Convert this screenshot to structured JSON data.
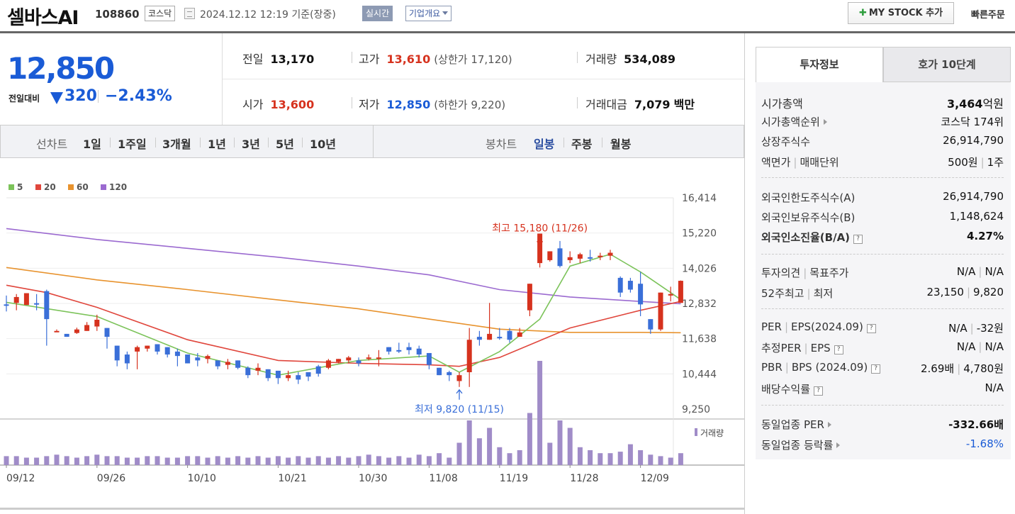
{
  "header": {
    "name": "셀바스AI",
    "code": "108860",
    "market": "코스닥",
    "timestamp": "2024.12.12 12:19 기준(장중)",
    "realtime": "실시간",
    "overview": "기업개요",
    "mystock": "MY STOCK 추가",
    "quick_order": "빠른주문"
  },
  "price": {
    "current": "12,850",
    "change_label": "전일대비",
    "change_abs": "320",
    "change_pct": "−2.43%",
    "direction": "down"
  },
  "quote": {
    "prev_close_label": "전일",
    "prev_close": "13,170",
    "high_label": "고가",
    "high": "13,610",
    "upper_limit": "(상한가 17,120)",
    "volume_label": "거래량",
    "volume": "534,089",
    "open_label": "시가",
    "open": "13,600",
    "low_label": "저가",
    "low": "12,850",
    "lower_limit": "(하한가 9,220)",
    "amount_label": "거래대금",
    "amount": "7,079",
    "amount_unit": "백만"
  },
  "periods": {
    "title": "선차트",
    "items": [
      "1일",
      "1주일",
      "3개월",
      "1년",
      "3년",
      "5년",
      "10년"
    ]
  },
  "candle_periods": {
    "title": "봉차트",
    "items": [
      "일봉",
      "주봉",
      "월봉"
    ],
    "active": "일봉"
  },
  "colors": {
    "up": "#d6321e",
    "down": "#3a6fd8",
    "ma5": "#7cc35a",
    "ma20": "#e0463c",
    "ma60": "#e8932e",
    "ma120": "#9b6ad0",
    "volume": "#a08cc8"
  },
  "side": {
    "tabs": [
      "투자정보",
      "호가 10단계"
    ],
    "market_cap_label": "시가총액",
    "market_cap": "3,464",
    "market_cap_unit": "억원",
    "cap_rank_label": "시가총액순위",
    "cap_rank": "코스닥 174위",
    "shares_label": "상장주식수",
    "shares": "26,914,790",
    "par_label": "액면가",
    "unit_label": "매매단위",
    "par": "500원",
    "unit": "1주",
    "foreign_limit_label": "외국인한도주식수(A)",
    "foreign_limit": "26,914,790",
    "foreign_hold_label": "외국인보유주식수(B)",
    "foreign_hold": "1,148,624",
    "foreign_ratio_label": "외국인소진율(B/A)",
    "foreign_ratio": "4.27%",
    "opinion_label": "투자의견",
    "target_label": "목표주가",
    "opinion": "N/A",
    "target": "N/A",
    "w52_high_label": "52주최고",
    "w52_low_label": "최저",
    "w52_high": "23,150",
    "w52_low": "9,820",
    "per_label": "PER",
    "eps_label": "EPS(2024.09)",
    "per": "N/A",
    "eps": "-32원",
    "est_per_label": "추정PER",
    "est_eps_label": "EPS",
    "est_per": "N/A",
    "est_eps": "N/A",
    "pbr_label": "PBR",
    "bps_label": "BPS (2024.09)",
    "pbr": "2.69배",
    "bps": "4,780원",
    "div_label": "배당수익률",
    "div": "N/A",
    "ind_per_label": "동일업종 PER",
    "ind_per": "-332.66배",
    "ind_chg_label": "동일업종 등락률",
    "ind_chg": "-1.68%"
  },
  "chart_data": {
    "type": "candlestick",
    "ylim": [
      9250,
      16414
    ],
    "y_ticks": [
      "16,414",
      "15,220",
      "14,026",
      "12,832",
      "11,638",
      "10,444",
      "9,250"
    ],
    "x_labels": [
      "09/12",
      "09/26",
      "10/10",
      "10/21",
      "10/30",
      "11/08",
      "11/19",
      "11/28",
      "12/09"
    ],
    "x_label_index": [
      0,
      9,
      18,
      27,
      35,
      42,
      49,
      56,
      63
    ],
    "legend": [
      "5",
      "20",
      "60",
      "120"
    ],
    "high_annotation": "최고 15,180 (11/26)",
    "low_annotation": "최저 9,820 (11/15)",
    "high_index": 53,
    "low_index": 45,
    "volume_label": "거래량",
    "candles": [
      [
        12800,
        12760,
        13100,
        12560
      ],
      [
        12850,
        13050,
        13150,
        12600
      ],
      [
        12780,
        13180,
        12870,
        13330
      ],
      [
        12840,
        12800,
        13150,
        12600
      ],
      [
        13250,
        12300,
        13300,
        11400
      ],
      [
        11900,
        11900,
        11950,
        11950
      ],
      [
        11800,
        11700,
        11800,
        11800
      ],
      [
        11830,
        11950,
        12010,
        11800
      ],
      [
        11900,
        12100,
        12200,
        11900
      ],
      [
        12050,
        12280,
        12450,
        11900
      ],
      [
        12000,
        11700,
        12000,
        11300
      ],
      [
        11400,
        10900,
        11300,
        10700
      ],
      [
        11100,
        10800,
        11200,
        10600
      ],
      [
        11200,
        11350,
        11400,
        10600
      ],
      [
        11300,
        11400,
        11400,
        11200
      ],
      [
        11450,
        11200,
        11450,
        11100
      ],
      [
        11350,
        11100,
        11350,
        11000
      ],
      [
        11200,
        11050,
        11300,
        10700
      ],
      [
        11100,
        10800,
        11100,
        10900
      ],
      [
        11000,
        10900,
        11150,
        10700
      ],
      [
        10950,
        11050,
        11100,
        10800
      ],
      [
        10900,
        10700,
        10900,
        10600
      ],
      [
        10750,
        10850,
        10950,
        10600
      ],
      [
        10900,
        10650,
        10900,
        10600
      ],
      [
        10650,
        10400,
        10700,
        10300
      ],
      [
        10550,
        10650,
        10800,
        10400
      ],
      [
        10600,
        10300,
        10600,
        10200
      ],
      [
        10550,
        10300,
        10550,
        10100
      ],
      [
        10300,
        10400,
        10550,
        10200
      ],
      [
        10400,
        10250,
        10500,
        10100
      ],
      [
        10500,
        10350,
        10500,
        10200
      ],
      [
        10700,
        10450,
        10750,
        10350
      ],
      [
        10650,
        10900,
        10950,
        10600
      ],
      [
        10850,
        10950,
        10950,
        10800
      ],
      [
        10900,
        11000,
        11050,
        10800
      ],
      [
        10900,
        10800,
        11000,
        10700
      ],
      [
        10950,
        11000,
        11100,
        10900
      ],
      [
        11000,
        11000,
        11250,
        10700
      ],
      [
        11350,
        11200,
        11350,
        11100
      ],
      [
        11250,
        11200,
        11500,
        11150
      ],
      [
        11350,
        11250,
        11500,
        11100
      ],
      [
        11300,
        11100,
        11400,
        11000
      ],
      [
        11150,
        10750,
        11150,
        10600
      ],
      [
        10650,
        10400,
        10650,
        10400
      ],
      [
        10500,
        10400,
        10550,
        10200
      ],
      [
        10200,
        10400,
        10500,
        10000
      ],
      [
        10500,
        11600,
        12000,
        10000
      ],
      [
        11700,
        11600,
        11900,
        11400
      ],
      [
        11600,
        11800,
        12850,
        11700
      ],
      [
        11700,
        11650,
        12000,
        11600
      ],
      [
        11900,
        11600,
        12000,
        11500
      ],
      [
        11700,
        11850,
        12000,
        11700
      ],
      [
        12600,
        13500,
        13300,
        12400
      ],
      [
        14200,
        15200,
        14700,
        14050
      ],
      [
        14300,
        14600,
        14500,
        14250
      ],
      [
        14700,
        14100,
        14950,
        14050
      ],
      [
        14300,
        14400,
        14600,
        14200
      ],
      [
        14350,
        14500,
        14550,
        14200
      ],
      [
        14400,
        14350,
        14650,
        14250
      ],
      [
        14400,
        14450,
        14550,
        14300
      ],
      [
        14450,
        14550,
        14650,
        14300
      ],
      [
        13700,
        13200,
        13750,
        13050
      ],
      [
        13600,
        13300,
        13700,
        13200
      ],
      [
        13500,
        12800,
        13900,
        12400
      ],
      [
        12300,
        11950,
        12200,
        11800
      ],
      [
        11950,
        13200,
        13200,
        11900
      ],
      [
        13100,
        13150,
        13400,
        12900
      ],
      [
        12850,
        13600,
        13610,
        12850
      ]
    ],
    "volumes": [
      6,
      6,
      5,
      5,
      6,
      7,
      6,
      5,
      6,
      7,
      6,
      6,
      5,
      5,
      6,
      6,
      5,
      5,
      6,
      6,
      5,
      6,
      5,
      6,
      5,
      6,
      5,
      6,
      5,
      6,
      5,
      6,
      5,
      6,
      5,
      6,
      7,
      6,
      5,
      6,
      5,
      7,
      6,
      8,
      5,
      15,
      30,
      18,
      25,
      12,
      8,
      10,
      35,
      70,
      15,
      30,
      25,
      12,
      10,
      8,
      8,
      9,
      14,
      10,
      7,
      6,
      5,
      8
    ],
    "ma5": [
      [
        0,
        12870
      ],
      [
        9,
        12390
      ],
      [
        18,
        11150
      ],
      [
        27,
        10400
      ],
      [
        35,
        10900
      ],
      [
        42,
        11050
      ],
      [
        45,
        10500
      ],
      [
        49,
        11200
      ],
      [
        53,
        12300
      ],
      [
        56,
        14100
      ],
      [
        60,
        14500
      ],
      [
        63,
        13900
      ],
      [
        66,
        13200
      ],
      [
        67,
        12960
      ]
    ],
    "ma20": [
      [
        0,
        13450
      ],
      [
        4,
        13200
      ],
      [
        9,
        12700
      ],
      [
        18,
        11600
      ],
      [
        27,
        10900
      ],
      [
        35,
        10800
      ],
      [
        42,
        10750
      ],
      [
        45,
        10700
      ],
      [
        49,
        11000
      ],
      [
        56,
        12000
      ],
      [
        63,
        12600
      ],
      [
        67,
        12900
      ]
    ],
    "ma60": [
      [
        0,
        14050
      ],
      [
        9,
        13630
      ],
      [
        18,
        13300
      ],
      [
        27,
        12950
      ],
      [
        35,
        12650
      ],
      [
        42,
        12300
      ],
      [
        49,
        11960
      ],
      [
        56,
        11850
      ],
      [
        63,
        11850
      ],
      [
        67,
        11840
      ]
    ],
    "ma120": [
      [
        0,
        15370
      ],
      [
        9,
        15000
      ],
      [
        18,
        14700
      ],
      [
        27,
        14400
      ],
      [
        35,
        14100
      ],
      [
        42,
        13800
      ],
      [
        49,
        13300
      ],
      [
        56,
        13050
      ],
      [
        63,
        12900
      ],
      [
        67,
        12820
      ]
    ]
  }
}
